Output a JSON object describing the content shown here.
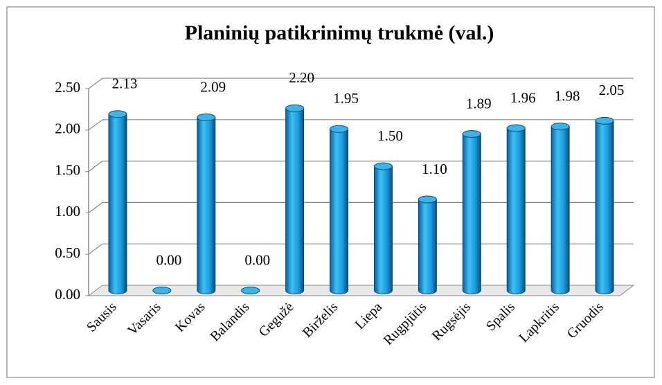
{
  "chart_data": {
    "type": "bar",
    "title": "Planinių patikrinimų trukmė (val.)",
    "categories": [
      "Sausis",
      "Vasaris",
      "Kovas",
      "Balandis",
      "Gegužė",
      "Birželis",
      "Liepa",
      "Rugpjūtis",
      "Rugsėjis",
      "Spalis",
      "Lapkritis",
      "Gruodis"
    ],
    "values": [
      2.13,
      0,
      2.09,
      0,
      2.2,
      1.95,
      1.5,
      1.1,
      1.89,
      1.96,
      1.98,
      2.05
    ],
    "value_labels": [
      "2.13",
      "0.00",
      "2.09",
      "0.00",
      "2.20",
      "1.95",
      "1.50",
      "1.10",
      "1.89",
      "1.96",
      "1.98",
      "2.05"
    ],
    "color": "#1a9ad8",
    "ylim": [
      0,
      2.5
    ],
    "yticks": [
      {
        "value": 0,
        "label": "0.00"
      },
      {
        "value": 0.5,
        "label": "0.50"
      },
      {
        "value": 1,
        "label": "1.00"
      },
      {
        "value": 1.5,
        "label": "1.50"
      },
      {
        "value": 2,
        "label": "2.00"
      },
      {
        "value": 2.5,
        "label": "2.50"
      }
    ],
    "grid": true
  }
}
